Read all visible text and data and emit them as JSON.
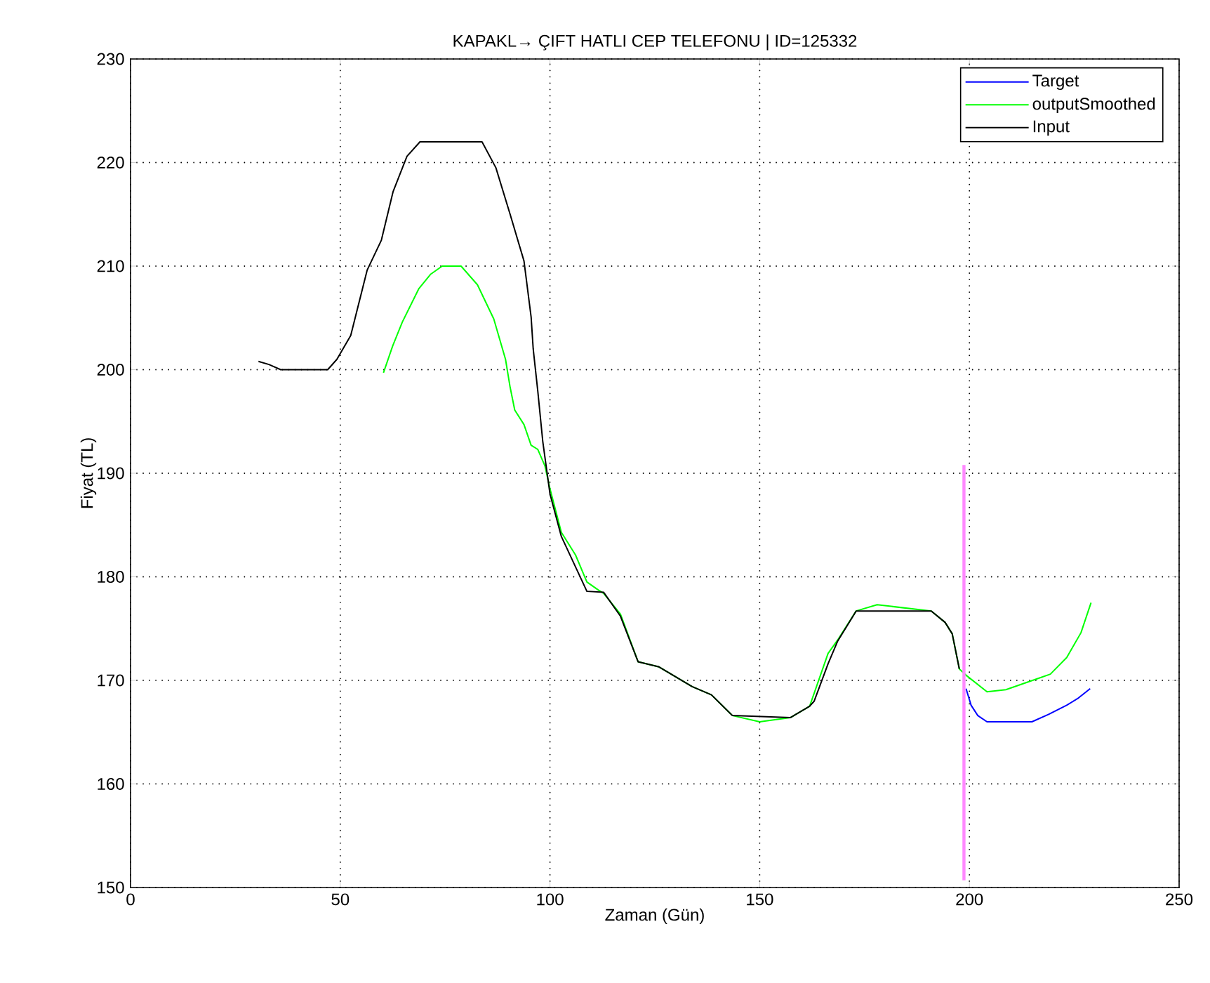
{
  "chart_data": {
    "type": "line",
    "title": "KAPAKL→ ÇIFT HATLI CEP TELEFONU | ID=125332",
    "xlabel": "Zaman (Gün)",
    "ylabel": "Fiyat (TL)",
    "xlim": [
      0,
      250
    ],
    "xticks": [
      0,
      50,
      100,
      150,
      200,
      250
    ],
    "ylim": [
      150,
      230
    ],
    "yticks": [
      150,
      160,
      170,
      180,
      190,
      200,
      210,
      220,
      230
    ],
    "grid": true,
    "legend": "top right",
    "marker": "none",
    "line_style": "solid",
    "series": [
      {
        "name": "Target",
        "color": "#0000ff",
        "x": [
          199.2,
          200.4,
          202,
          204.2,
          210,
          214.9,
          218.8,
          223.2,
          226,
          228.8
        ],
        "values": [
          169.2,
          167.6,
          166.6,
          166,
          166,
          166,
          166.7,
          167.6,
          168.3,
          169.2
        ]
      },
      {
        "name": "outputSmoothed",
        "color": "#00ff00",
        "x": [
          60.3,
          62.5,
          64.8,
          68.7,
          71.5,
          74.3,
          78.8,
          82.7,
          86.6,
          89.4,
          90.5,
          91.6,
          93.8,
          95.5,
          97.1,
          98.8,
          100,
          102.7,
          106.1,
          108.8,
          111.6,
          112.8,
          116.8,
          121,
          126,
          133.9,
          138.5,
          143.5,
          150,
          157.3,
          161.9,
          166.3,
          168.6,
          173,
          178,
          190.9,
          194.2,
          195.9,
          197.6,
          199.2,
          204.2,
          208.7,
          216.5,
          219.3,
          223.2,
          226.6,
          229
        ],
        "values": [
          199.7,
          202.3,
          204.6,
          207.8,
          209.2,
          210,
          210,
          208.2,
          204.9,
          201,
          198.3,
          196.1,
          194.7,
          192.7,
          192.3,
          190.7,
          188.5,
          184.3,
          182.1,
          179.5,
          178.7,
          178.4,
          176.4,
          171.8,
          171.3,
          169.4,
          168.6,
          166.6,
          166,
          166.4,
          167.5,
          172.6,
          173.9,
          176.7,
          177.3,
          176.7,
          175.6,
          174.5,
          171.1,
          170.5,
          168.9,
          169.1,
          170.2,
          170.6,
          172.2,
          174.6,
          177.5
        ]
      },
      {
        "name": "Input",
        "color": "#000000",
        "x": [
          30.5,
          33,
          35.8,
          47,
          49.2,
          52.5,
          56.4,
          59.8,
          62.6,
          65.9,
          69,
          83.8,
          87.1,
          90.5,
          93.8,
          95.5,
          96,
          97.1,
          98.3,
          100,
          102.7,
          108.8,
          112.8,
          116.8,
          121,
          126,
          133.9,
          138.5,
          143.5,
          157.3,
          161.9,
          163,
          166.3,
          168.6,
          173,
          190.9,
          194.2,
          195.9,
          197.6
        ],
        "values": [
          200.8,
          200.5,
          200,
          200,
          201,
          203.3,
          209.6,
          212.5,
          217.2,
          220.6,
          222,
          222,
          219.5,
          215,
          210.5,
          205.1,
          202,
          197.9,
          193,
          188,
          183.9,
          178.6,
          178.5,
          176.2,
          171.8,
          171.3,
          169.4,
          168.6,
          166.6,
          166.4,
          167.5,
          168,
          171.6,
          173.8,
          176.7,
          176.7,
          175.6,
          174.5,
          171.1
        ]
      },
      {
        "color": "#ff88ff",
        "x": [
          198.7,
          198.7
        ],
        "values": [
          190.8,
          150.7
        ]
      }
    ]
  }
}
